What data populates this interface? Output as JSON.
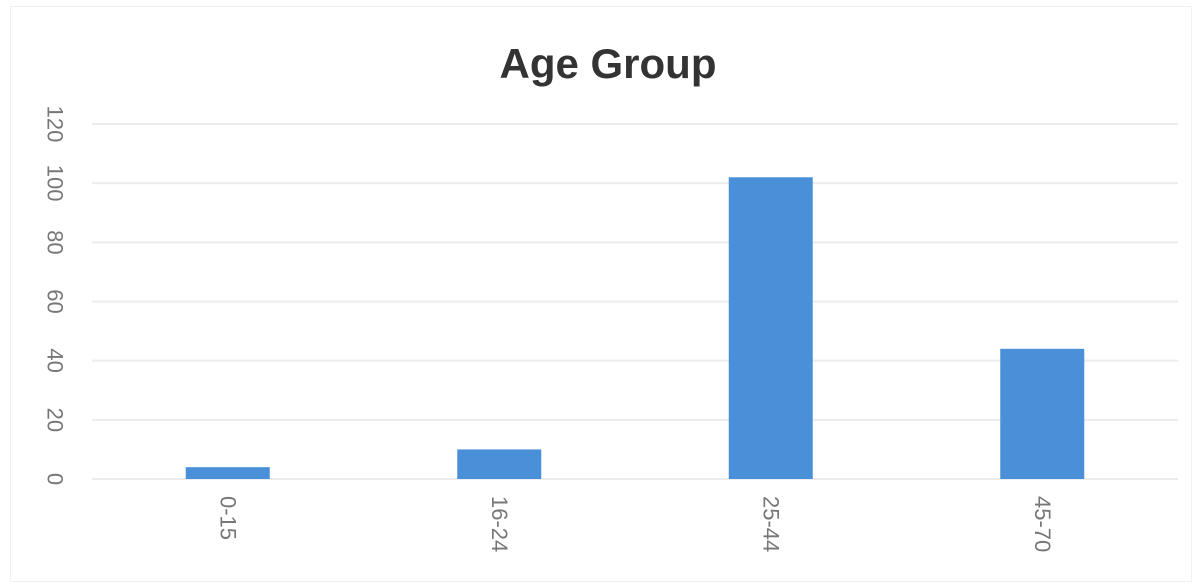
{
  "chart_data": {
    "type": "bar",
    "title": "Age Group",
    "xlabel": "",
    "ylabel": "",
    "categories": [
      "0-15",
      "16-24",
      "25-44",
      "45-70"
    ],
    "values": [
      4,
      10,
      102,
      44
    ],
    "ylim": [
      0,
      120
    ],
    "yticks": [
      "0",
      "20",
      "40",
      "60",
      "80",
      "100",
      "120"
    ],
    "grid": true,
    "legend": "none",
    "colors": {
      "bar": "#4a90d9",
      "grid": "#ececec",
      "title": "#333333",
      "tick": "#777777"
    }
  }
}
